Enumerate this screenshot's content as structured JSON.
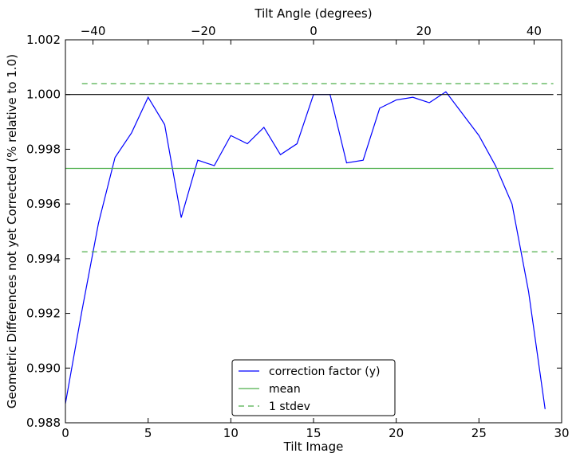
{
  "chart_data": {
    "type": "line",
    "title": "",
    "xlabel": "Tilt Image",
    "ylabel": "Geometric Differences not yet Corrected (% relative to 1.0)",
    "top_xlabel": "Tilt Angle (degrees)",
    "xlim": [
      0,
      30
    ],
    "ylim": [
      0.988,
      1.002
    ],
    "x_ticks": [
      0,
      5,
      10,
      15,
      20,
      25,
      30
    ],
    "y_ticks": [
      0.988,
      0.99,
      0.992,
      0.994,
      0.996,
      0.998,
      1.0,
      1.002
    ],
    "y_tick_labels": [
      "0.988",
      "0.990",
      "0.992",
      "0.994",
      "0.996",
      "0.998",
      "1.000",
      "1.002"
    ],
    "top_xlim": [
      -45,
      45
    ],
    "top_x_ticks": [
      -40,
      -20,
      0,
      20,
      40
    ],
    "grid": false,
    "legend_position": "bottom-center",
    "series": [
      {
        "name": "correction factor (y)",
        "color": "#0000ff",
        "style": "solid",
        "x": [
          0,
          1,
          2,
          3,
          4,
          5,
          6,
          7,
          8,
          9,
          10,
          11,
          12,
          13,
          14,
          15,
          16,
          17,
          18,
          19,
          20,
          21,
          22,
          23,
          24,
          25,
          26,
          27,
          28,
          29
        ],
        "values": [
          0.9887,
          0.9921,
          0.9953,
          0.9977,
          0.9986,
          0.9999,
          0.9989,
          0.9955,
          0.9976,
          0.9974,
          0.9985,
          0.9982,
          0.9988,
          0.9978,
          0.9982,
          1.0,
          1.0,
          0.9975,
          0.9976,
          0.9995,
          0.9998,
          0.9999,
          0.9997,
          1.0001,
          0.9993,
          0.9985,
          0.9974,
          0.996,
          0.9928,
          0.9885
        ]
      },
      {
        "name": "mean",
        "color": "#4daf4a",
        "style": "solid",
        "x": [
          0,
          29.5
        ],
        "values": [
          0.9973,
          0.9973
        ]
      },
      {
        "name": "1 stdev",
        "color": "#4daf4a",
        "style": "dashed",
        "x": [
          1,
          29.5
        ],
        "values": [
          1.0004,
          1.0004
        ]
      },
      {
        "name": "",
        "color": "#4daf4a",
        "style": "dashed",
        "x": [
          1,
          29.5
        ],
        "values": [
          0.99425,
          0.99425
        ]
      },
      {
        "name": "",
        "color": "#000000",
        "style": "solid",
        "x": [
          0,
          29.5
        ],
        "values": [
          1.0,
          1.0
        ]
      }
    ],
    "legend": [
      "correction factor (y)",
      "mean",
      "1 stdev"
    ]
  }
}
